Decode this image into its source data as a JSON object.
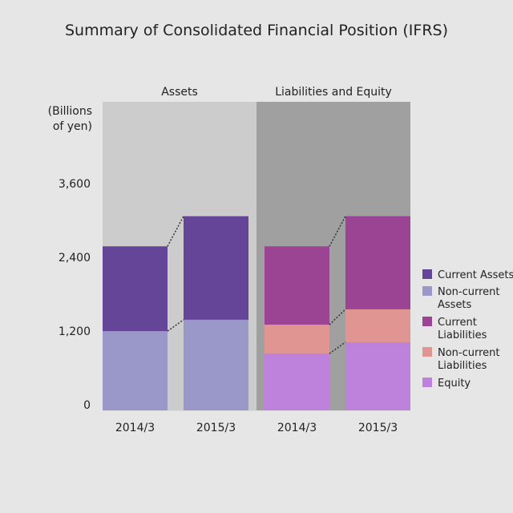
{
  "chart_data": {
    "type": "bar",
    "stacked": true,
    "title": "Summary of Consolidated Financial Position (IFRS)",
    "ylabel": "(Billions of yen)",
    "ylabel_lines": [
      "(Billions",
      "of yen)"
    ],
    "ylim": [
      0,
      4400
    ],
    "yticks": [
      0,
      1200,
      2400,
      3600
    ],
    "ytick_labels": [
      "0",
      "1,200",
      "2,400",
      "3,600"
    ],
    "grid": false,
    "legend_position": "right",
    "groups": [
      {
        "label": "Assets",
        "panel_color": "#cccccc",
        "categories": [
          "2014/3",
          "2015/3"
        ],
        "series": [
          {
            "name": "Non-current Assets",
            "color": "#9a97c9",
            "values": [
              1290,
              1475
            ]
          },
          {
            "name": "Current Assets",
            "color": "#654597",
            "values": [
              1380,
              1685
            ]
          }
        ]
      },
      {
        "label": "Liabilities and Equity",
        "panel_color": "#a0a0a0",
        "categories": [
          "2014/3",
          "2015/3"
        ],
        "series": [
          {
            "name": "Equity",
            "color": "#be82dd",
            "values": [
              925,
              1110
            ]
          },
          {
            "name": "Non-current Liabilities",
            "color": "#e09592",
            "values": [
              470,
              535
            ]
          },
          {
            "name": "Current Liabilities",
            "color": "#9b4493",
            "values": [
              1275,
              1515
            ]
          }
        ]
      }
    ],
    "legend": [
      {
        "lines": [
          "Current Assets"
        ],
        "color": "#654597"
      },
      {
        "lines": [
          "Non-current",
          "Assets"
        ],
        "color": "#9a97c9"
      },
      {
        "lines": [
          "Current",
          "Liabilities"
        ],
        "color": "#9b4493"
      },
      {
        "lines": [
          "Non-current",
          "Liabilities"
        ],
        "color": "#e09592"
      },
      {
        "lines": [
          "Equity"
        ],
        "color": "#be82dd"
      }
    ]
  }
}
